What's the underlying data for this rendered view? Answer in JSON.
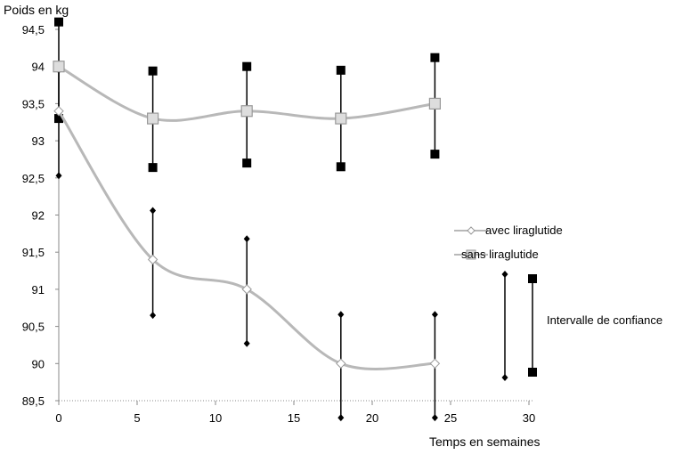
{
  "chart_data": {
    "type": "line",
    "ylabel": "Poids en kg",
    "xlabel": "Temps en semaines",
    "xlim": [
      0,
      30
    ],
    "ylim": [
      89.5,
      94.5
    ],
    "xticks": [
      "0",
      "5",
      "10",
      "15",
      "20",
      "25",
      "30"
    ],
    "yticks": [
      "89,5",
      "90",
      "90,5",
      "91",
      "91,5",
      "92",
      "92,5",
      "93",
      "93,5",
      "94",
      "94,5"
    ],
    "grid": false,
    "series": [
      {
        "name": "avec liraglutide",
        "color": "#b8b8b8",
        "marker": "diamond",
        "x": [
          0,
          6,
          12,
          18,
          24
        ],
        "y": [
          93.4,
          91.4,
          91.0,
          90.0,
          90.0
        ],
        "ci_low": [
          92.53,
          90.65,
          90.27,
          89.27,
          89.27
        ],
        "ci_high": [
          93.95,
          92.06,
          91.68,
          90.66,
          90.66
        ]
      },
      {
        "name": "sans liraglutide",
        "color": "#b8b8b8",
        "marker": "square",
        "x": [
          0,
          6,
          12,
          18,
          24
        ],
        "y": [
          94.0,
          93.3,
          93.4,
          93.3,
          93.5
        ],
        "ci_low": [
          93.3,
          92.64,
          92.7,
          92.65,
          92.82
        ],
        "ci_high": [
          94.6,
          93.94,
          94.0,
          93.95,
          94.12
        ]
      }
    ],
    "legend": {
      "placement": "right",
      "items": [
        "avec liraglutide",
        "sans liraglutide"
      ],
      "ci_label": "Intervalle de confiance"
    }
  }
}
